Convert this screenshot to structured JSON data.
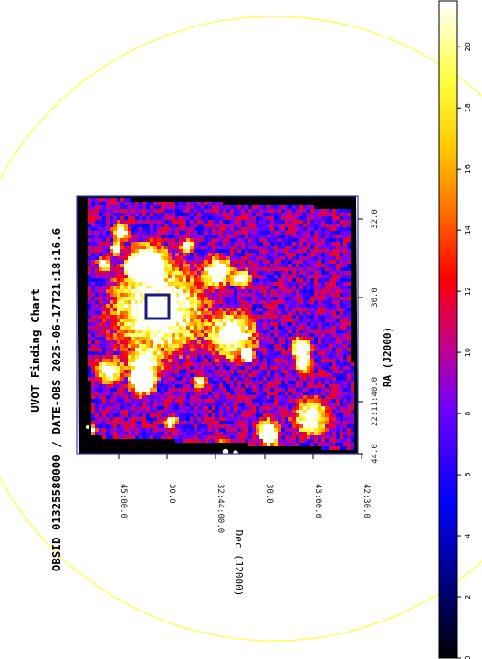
{
  "chart_data": {
    "type": "heatmap",
    "title": "UVOT Finding Chart",
    "subtitle": "OBSID 01325580000 / DATE-OBS 2025-06-17T21:18:16.6",
    "xlabel": "RA (J2000)",
    "ylabel": "Dec (J2000)",
    "ra_ticks": [
      "44.0",
      "22:11:40.0",
      "36.0",
      "32.0"
    ],
    "dec_ticks": [
      "45:00.0",
      "30.0",
      "32:44:00.0",
      "30.0",
      "43:00.0",
      "42:30.0"
    ],
    "colorbar": {
      "ticks": [
        "0",
        "2",
        "4",
        "6",
        "8",
        "10",
        "12",
        "14",
        "16",
        "18",
        "20"
      ],
      "range": [
        0,
        21.5
      ],
      "colormap": [
        "#000000",
        "#000080",
        "#0000ff",
        "#8000ff",
        "#ff0080",
        "#ff0000",
        "#ff8000",
        "#ffff00",
        "#ffffff"
      ]
    },
    "circle_color": "#ffff33"
  }
}
